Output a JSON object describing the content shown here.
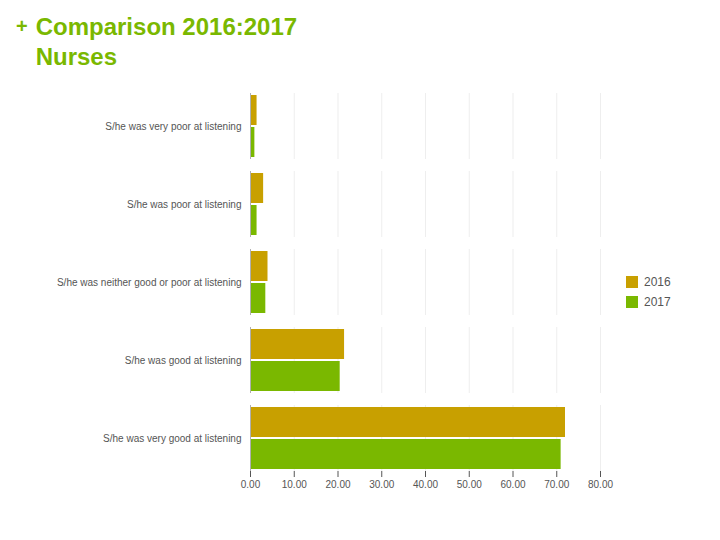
{
  "chart_data": {
    "type": "bar",
    "orientation": "horizontal",
    "title": "Comparison 2016:2017",
    "subtitle": "Nurses",
    "annotations": [
      "+"
    ],
    "categories": [
      "S/he was very poor at listening",
      "S/he was poor at listening",
      "S/he was neither good or poor at listening",
      "S/he was good at listening",
      "S/he was very good at listening"
    ],
    "series": [
      {
        "name": "2016",
        "color": "#c8a000",
        "values": [
          1.5,
          3.0,
          4.0,
          21.5,
          72.0
        ]
      },
      {
        "name": "2017",
        "color": "#7ab800",
        "values": [
          1.0,
          1.5,
          3.5,
          20.5,
          71.0
        ]
      }
    ],
    "xlim": [
      0,
      80
    ],
    "xticks": [
      {
        "value": 0,
        "label": "0.00"
      },
      {
        "value": 10,
        "label": "10.00"
      },
      {
        "value": 20,
        "label": "20.00"
      },
      {
        "value": 30,
        "label": "30.00"
      },
      {
        "value": 40,
        "label": "40.00"
      },
      {
        "value": 50,
        "label": "50.00"
      },
      {
        "value": 60,
        "label": "60.00"
      },
      {
        "value": 70,
        "label": "70.00"
      },
      {
        "value": 80,
        "label": "80.00"
      }
    ],
    "grid": true,
    "legend": "right"
  }
}
